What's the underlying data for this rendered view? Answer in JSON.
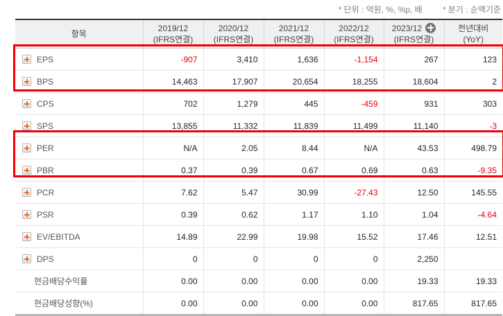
{
  "notes": {
    "marker": "*",
    "unit": "단위 : 억원, %, %p, 배",
    "period": "분기 : 순액기준"
  },
  "colors": {
    "negative_text": "#e8000d",
    "highlight_border": "#ee0004",
    "expand_icon_plus": "#f26a1b",
    "header_background": "#f0f0f0"
  },
  "table": {
    "item_header": "항목",
    "columns": [
      {
        "period": "2019/12",
        "basis": "(IFRS연결)",
        "has_plus_icon": false
      },
      {
        "period": "2020/12",
        "basis": "(IFRS연결)",
        "has_plus_icon": false
      },
      {
        "period": "2021/12",
        "basis": "(IFRS연결)",
        "has_plus_icon": false
      },
      {
        "period": "2022/12",
        "basis": "(IFRS연결)",
        "has_plus_icon": false
      },
      {
        "period": "2023/12",
        "basis": "(IFRS연결)",
        "has_plus_icon": true
      },
      {
        "period": "전년대비",
        "basis": "(YoY)",
        "has_plus_icon": false
      }
    ],
    "rows": [
      {
        "label": "EPS",
        "expandable": true,
        "highlighted": true,
        "values": [
          "-907",
          "3,410",
          "1,636",
          "-1,154",
          "267",
          "123"
        ]
      },
      {
        "label": "BPS",
        "expandable": true,
        "highlighted": true,
        "values": [
          "14,463",
          "17,907",
          "20,654",
          "18,255",
          "18,604",
          "2"
        ]
      },
      {
        "label": "CPS",
        "expandable": true,
        "highlighted": false,
        "values": [
          "702",
          "1,279",
          "445",
          "-459",
          "931",
          "303"
        ]
      },
      {
        "label": "SPS",
        "expandable": true,
        "highlighted": false,
        "values": [
          "13,855",
          "11,332",
          "11,839",
          "11,499",
          "11,140",
          "-3"
        ]
      },
      {
        "label": "PER",
        "expandable": true,
        "highlighted": true,
        "values": [
          "N/A",
          "2.05",
          "8.44",
          "N/A",
          "43.53",
          "498.79"
        ]
      },
      {
        "label": "PBR",
        "expandable": true,
        "highlighted": true,
        "values": [
          "0.37",
          "0.39",
          "0.67",
          "0.69",
          "0.63",
          "-9.35"
        ]
      },
      {
        "label": "PCR",
        "expandable": true,
        "highlighted": false,
        "values": [
          "7.62",
          "5.47",
          "30.99",
          "-27.43",
          "12.50",
          "145.55"
        ]
      },
      {
        "label": "PSR",
        "expandable": true,
        "highlighted": false,
        "values": [
          "0.39",
          "0.62",
          "1.17",
          "1.10",
          "1.04",
          "-4.64"
        ]
      },
      {
        "label": "EV/EBITDA",
        "expandable": true,
        "highlighted": false,
        "values": [
          "14.89",
          "22.99",
          "19.98",
          "15.52",
          "17.46",
          "12.51"
        ]
      },
      {
        "label": "DPS",
        "expandable": true,
        "highlighted": false,
        "values": [
          "0",
          "0",
          "0",
          "0",
          "2,250",
          ""
        ]
      },
      {
        "label": "현금배당수익률",
        "expandable": false,
        "highlighted": false,
        "values": [
          "0.00",
          "0.00",
          "0.00",
          "0.00",
          "19.33",
          "19.33"
        ]
      },
      {
        "label": "현금배당성향(%)",
        "expandable": false,
        "highlighted": false,
        "values": [
          "0.00",
          "0.00",
          "0.00",
          "0.00",
          "817.65",
          "817.65"
        ]
      }
    ]
  }
}
